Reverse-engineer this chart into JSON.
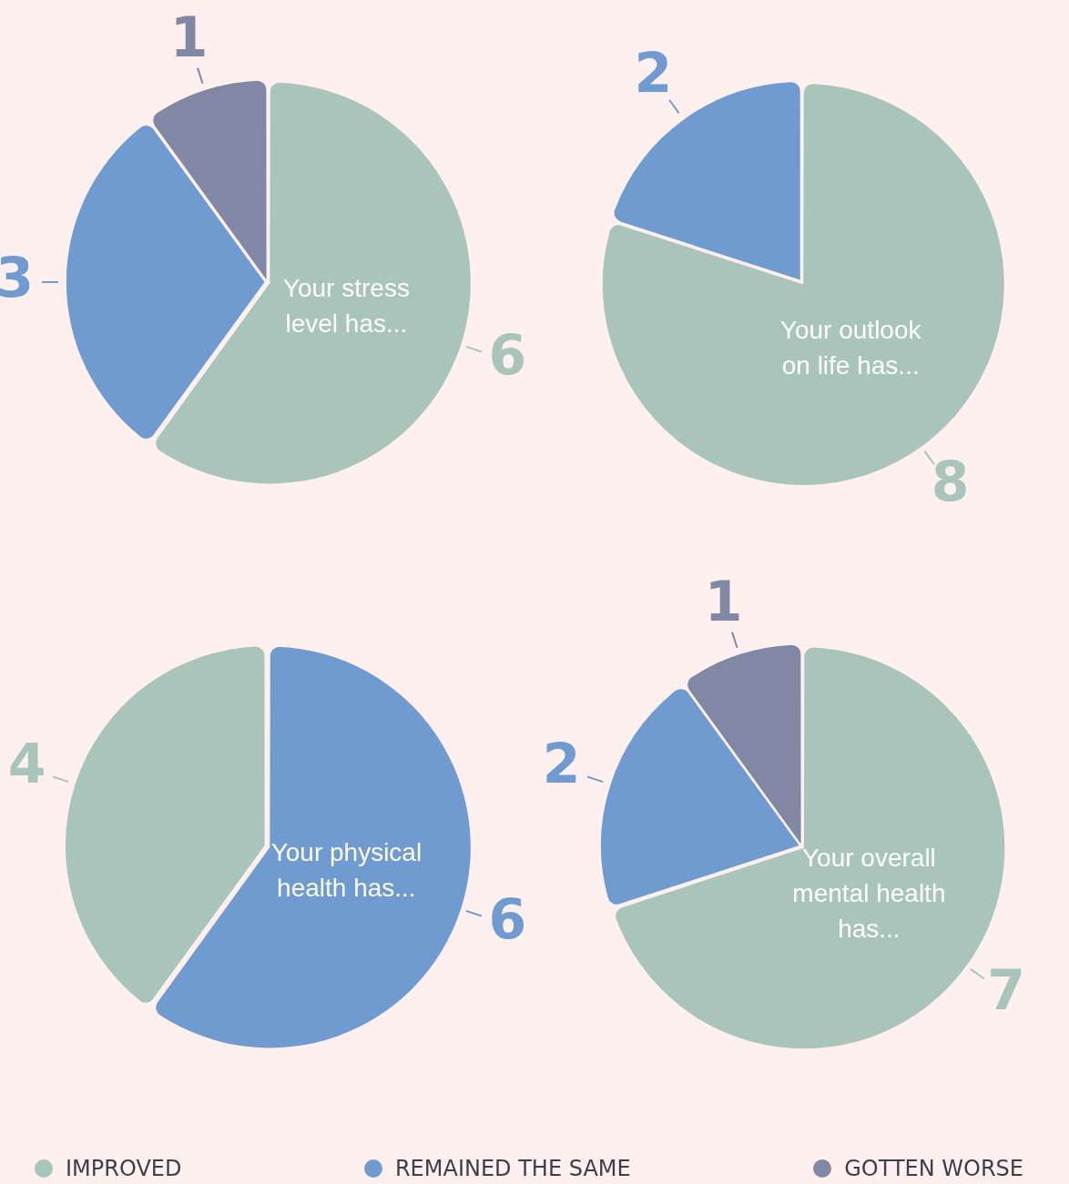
{
  "chart_data": [
    {
      "type": "pie",
      "title": "Your stress level has...",
      "categories": [
        "IMPROVED",
        "REMAINED THE SAME",
        "GOTTEN WORSE"
      ],
      "values": [
        6,
        3,
        1
      ],
      "colors": [
        "#a9c5bb",
        "#6f9bd1",
        "#8088a3"
      ],
      "data_labels": true,
      "legend": "bottom"
    },
    {
      "type": "pie",
      "title": "Your outlook on life has...",
      "categories": [
        null,
        null
      ],
      "values": [
        8,
        2
      ],
      "colors": [
        "#a9c5bb",
        "#6f9bd1"
      ],
      "data_labels": true
    },
    {
      "type": "pie",
      "title": "Your physical health has...",
      "categories": [
        null,
        null
      ],
      "values": [
        6,
        4
      ],
      "colors": [
        "#6f9bd1",
        "#a9c5bb"
      ],
      "data_labels": true
    },
    {
      "type": "pie",
      "title": "Your overall mental health has...",
      "categories": [
        null,
        null,
        null
      ],
      "values": [
        7,
        2,
        1
      ],
      "colors": [
        "#a9c5bb",
        "#6f9bd1",
        "#8088a3"
      ],
      "data_labels": true
    }
  ]
}
